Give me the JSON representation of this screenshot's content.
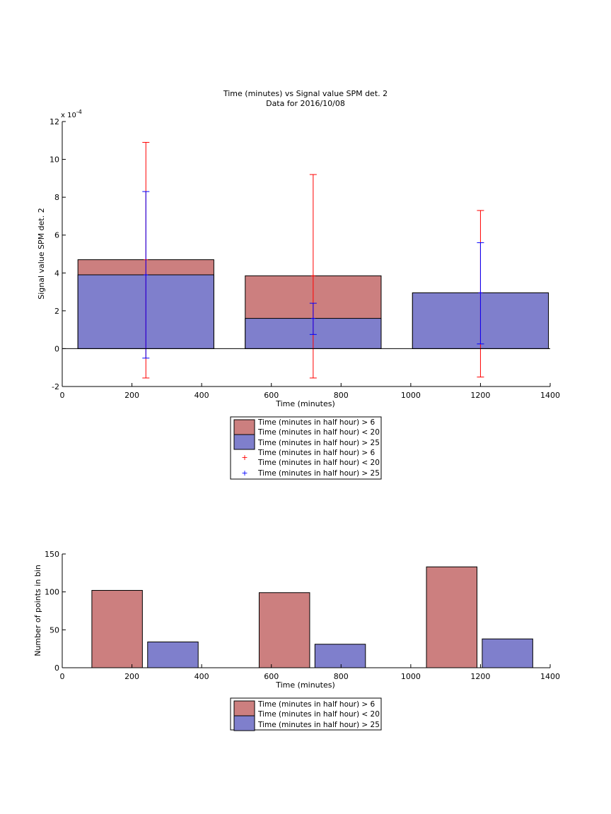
{
  "chart_data": [
    {
      "type": "bar",
      "title": "Time (minutes) vs Signal value SPM det. 2",
      "subtitle": "Data for 2016/10/08",
      "xlabel": "Time (minutes)",
      "ylabel": "Signal value SPM det. 2",
      "exponent_label": "x 10",
      "exponent_power": "-4",
      "xlim": [
        0,
        1400
      ],
      "ylim": [
        -2,
        12
      ],
      "xticks": [
        "0",
        "200",
        "400",
        "600",
        "800",
        "1000",
        "1200",
        "1400"
      ],
      "yticks": [
        "-2",
        "0",
        "2",
        "4",
        "6",
        "8",
        "10",
        "12"
      ],
      "categories": [
        240,
        720,
        1200
      ],
      "bar_width": 390,
      "series": [
        {
          "name": "Time (minutes in half hour) > 6",
          "name2": "Time (minutes in half hour) < 20",
          "color": "#cc7f7f",
          "values": [
            4.7,
            3.85,
            2.95
          ]
        },
        {
          "name": "Time (minutes in half hour) > 25",
          "color": "#7f7fcc",
          "values": [
            3.9,
            1.6,
            2.95
          ]
        }
      ],
      "error_bars": [
        {
          "color": "#ff0000",
          "lower": [
            -1.55,
            -1.55,
            -1.5
          ],
          "upper": [
            10.9,
            9.2,
            7.3
          ],
          "center": [
            4.7,
            3.85,
            2.95
          ]
        },
        {
          "color": "#0000ff",
          "lower": [
            -0.5,
            0.75,
            0.25
          ],
          "upper": [
            8.3,
            2.4,
            5.6
          ],
          "center": [
            3.9,
            1.6,
            2.95
          ]
        }
      ],
      "legend": {
        "position": "below",
        "entries": [
          {
            "kind": "patch",
            "color": "#cc7f7f",
            "lines": [
              "Time (minutes in half hour) > 6",
              "Time (minutes in half hour) < 20"
            ]
          },
          {
            "kind": "patch",
            "color": "#7f7fcc",
            "lines": [
              "Time (minutes in half hour) > 25"
            ]
          },
          {
            "kind": "marker",
            "color": "#ff0000",
            "lines": [
              "Time (minutes in half hour) > 6",
              "Time (minutes in half hour) < 20"
            ]
          },
          {
            "kind": "marker",
            "color": "#0000ff",
            "lines": [
              "Time (minutes in half hour) > 25"
            ]
          }
        ]
      },
      "grid": false
    },
    {
      "type": "bar",
      "xlabel": "Time (minutes)",
      "ylabel": "Number of points in bin",
      "xlim": [
        0,
        1400
      ],
      "ylim": [
        0,
        150
      ],
      "xticks": [
        "0",
        "200",
        "400",
        "600",
        "800",
        "1000",
        "1200",
        "1400"
      ],
      "yticks": [
        "0",
        "50",
        "100",
        "150"
      ],
      "bars": [
        {
          "x0": 85,
          "x1": 230,
          "value": 102,
          "color": "#cc7f7f"
        },
        {
          "x0": 245,
          "x1": 390,
          "value": 34,
          "color": "#7f7fcc"
        },
        {
          "x0": 565,
          "x1": 710,
          "value": 99,
          "color": "#cc7f7f"
        },
        {
          "x0": 725,
          "x1": 870,
          "value": 31,
          "color": "#7f7fcc"
        },
        {
          "x0": 1045,
          "x1": 1190,
          "value": 133,
          "color": "#cc7f7f"
        },
        {
          "x0": 1205,
          "x1": 1350,
          "value": 38,
          "color": "#7f7fcc"
        }
      ],
      "legend": {
        "position": "below",
        "entries": [
          {
            "kind": "patch",
            "color": "#cc7f7f",
            "lines": [
              "Time (minutes in half hour) > 6",
              "Time (minutes in half hour) < 20"
            ]
          },
          {
            "kind": "patch",
            "color": "#7f7fcc",
            "lines": [
              "Time (minutes in half hour) > 25"
            ]
          }
        ]
      },
      "grid": false
    }
  ]
}
